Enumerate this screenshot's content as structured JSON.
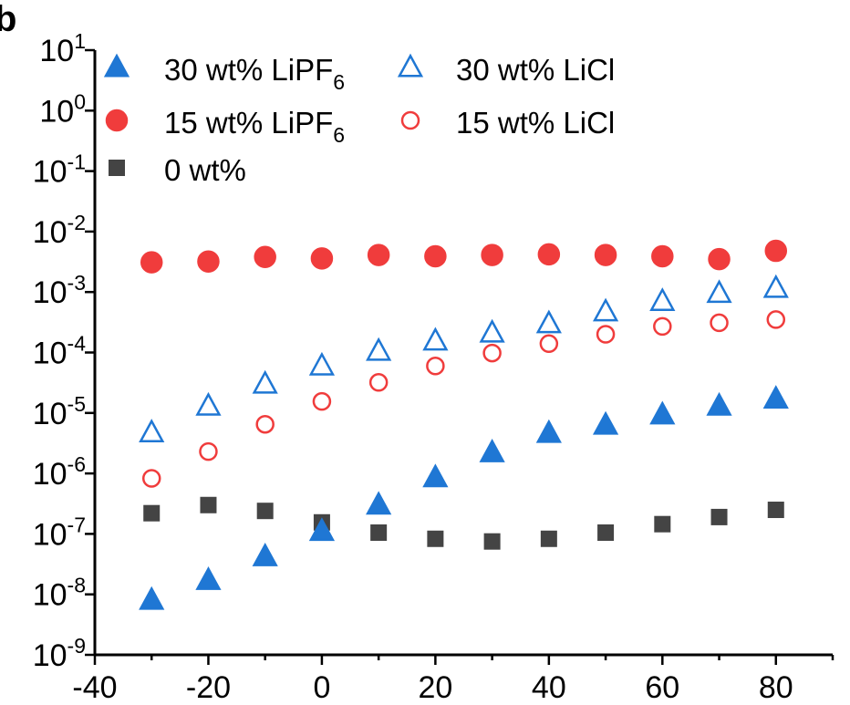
{
  "panel_label": "b",
  "chart_data": {
    "type": "scatter",
    "title": "",
    "xlabel": "",
    "ylabel": "",
    "xlim": [
      -40,
      90
    ],
    "ylim": [
      1e-09,
      10
    ],
    "y_scale": "log",
    "x_ticks": [
      -40,
      -20,
      0,
      20,
      40,
      60,
      80
    ],
    "x_tick_labels": [
      "-40",
      "-20",
      "0",
      "20",
      "40",
      "60",
      "80"
    ],
    "y_ticks": [
      {
        "value": 1e-09,
        "base": "10",
        "exp": "-9"
      },
      {
        "value": 1e-08,
        "base": "10",
        "exp": "-8"
      },
      {
        "value": 1e-07,
        "base": "10",
        "exp": "-7"
      },
      {
        "value": 1e-06,
        "base": "10",
        "exp": "-6"
      },
      {
        "value": 1e-05,
        "base": "10",
        "exp": "-5"
      },
      {
        "value": 0.0001,
        "base": "10",
        "exp": "-4"
      },
      {
        "value": 0.001,
        "base": "10",
        "exp": "-3"
      },
      {
        "value": 0.01,
        "base": "10",
        "exp": "-2"
      },
      {
        "value": 0.1,
        "base": "10",
        "exp": "-1"
      },
      {
        "value": 1,
        "base": "10",
        "exp": "0"
      },
      {
        "value": 10,
        "base": "10",
        "exp": "1"
      }
    ],
    "grid": false,
    "legend_position": "top-left",
    "series": [
      {
        "name": "30 wt% LiPF6",
        "legend_main": "30 wt% LiPF",
        "legend_sub": "6",
        "marker": "triangle",
        "filled": true,
        "color": "#1f77d4",
        "x": [
          -30,
          -20,
          -10,
          0,
          10,
          20,
          30,
          40,
          50,
          60,
          70,
          80
        ],
        "y": [
          8e-09,
          1.7e-08,
          4.2e-08,
          1.1e-07,
          3e-07,
          8.5e-07,
          2.2e-06,
          4.6e-06,
          6.3e-06,
          9.3e-06,
          1.3e-05,
          1.7e-05
        ]
      },
      {
        "name": "30 wt% LiCl",
        "legend_main": "30 wt% LiCl",
        "legend_sub": "",
        "marker": "triangle",
        "filled": false,
        "color": "#1f77d4",
        "x": [
          -30,
          -20,
          -10,
          0,
          10,
          20,
          30,
          40,
          50,
          60,
          70,
          80
        ],
        "y": [
          4.7e-06,
          1.3e-05,
          3e-05,
          6e-05,
          0.000105,
          0.000155,
          0.00021,
          0.0003,
          0.00047,
          0.0007,
          0.00095,
          0.00115
        ]
      },
      {
        "name": "15 wt% LiPF6",
        "legend_main": "15 wt% LiPF",
        "legend_sub": "6",
        "marker": "circle",
        "filled": true,
        "color": "#f03c3c",
        "x": [
          -30,
          -20,
          -10,
          0,
          10,
          20,
          30,
          40,
          50,
          60,
          70,
          80
        ],
        "y": [
          0.0031,
          0.0032,
          0.0038,
          0.0036,
          0.0041,
          0.0039,
          0.0041,
          0.0042,
          0.0041,
          0.0039,
          0.0035,
          0.0048
        ]
      },
      {
        "name": "15 wt% LiCl",
        "legend_main": "15 wt% LiCl",
        "legend_sub": "",
        "marker": "circle",
        "filled": false,
        "color": "#f03c3c",
        "x": [
          -30,
          -20,
          -10,
          0,
          10,
          20,
          30,
          40,
          50,
          60,
          70,
          80
        ],
        "y": [
          8.3e-07,
          2.3e-06,
          6.5e-06,
          1.55e-05,
          3.2e-05,
          6e-05,
          9.8e-05,
          0.00014,
          0.0002,
          0.00027,
          0.00031,
          0.00035
        ]
      },
      {
        "name": "0 wt%",
        "legend_main": "0 wt%",
        "legend_sub": "",
        "marker": "square",
        "filled": true,
        "color": "#444444",
        "x": [
          -30,
          -20,
          -10,
          0,
          10,
          20,
          30,
          40,
          50,
          60,
          70,
          80
        ],
        "y": [
          2.2e-07,
          3e-07,
          2.4e-07,
          1.55e-07,
          1.05e-07,
          8.3e-08,
          7.5e-08,
          8.3e-08,
          1.05e-07,
          1.45e-07,
          1.9e-07,
          2.5e-07
        ]
      }
    ]
  }
}
